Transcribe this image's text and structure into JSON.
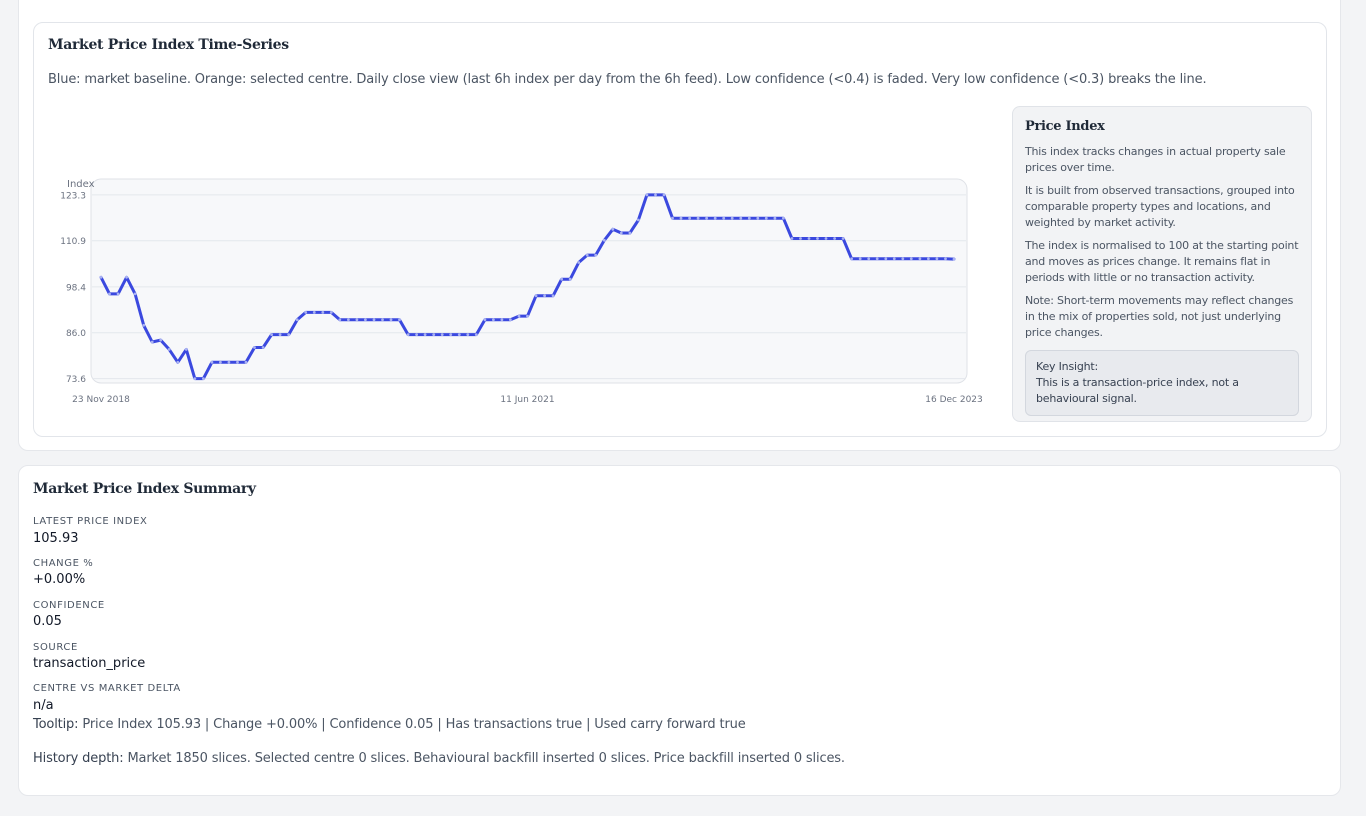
{
  "timeseries": {
    "title": "Market Price Index Time-Series",
    "description": "Blue: market baseline. Orange: selected centre. Daily close view (last 6h index per day from the 6h feed). Low confidence (<0.4) is faded. Very low confidence (<0.3) breaks the line."
  },
  "chart_data": {
    "type": "line",
    "ylabel": "Index",
    "yticks": [
      "123.3",
      "110.9",
      "98.4",
      "86.0",
      "73.6"
    ],
    "xticks": [
      "23 Nov 2018",
      "11 Jun 2021",
      "16 Dec 2023"
    ],
    "ylim": [
      72.4,
      127.6
    ],
    "xlim": [
      0,
      100
    ],
    "grid": true,
    "series": [
      {
        "color": "#3b49df",
        "x": [
          0,
          1,
          2,
          3,
          4,
          5,
          6,
          7,
          8,
          9,
          10,
          11,
          12,
          13,
          14,
          15,
          16,
          17,
          18,
          19,
          20,
          21,
          22,
          23,
          24,
          25,
          26,
          27,
          28,
          29,
          30,
          31,
          32,
          33,
          34,
          35,
          36,
          37,
          38,
          39,
          40,
          41,
          42,
          43,
          44,
          45,
          46,
          47,
          48,
          49,
          50,
          51,
          52,
          53,
          54,
          55,
          56,
          57,
          58,
          59,
          60,
          61,
          62,
          63,
          64,
          65,
          66,
          67,
          68,
          69,
          70,
          71,
          72,
          73,
          74,
          75,
          76,
          77,
          78,
          79,
          80,
          81,
          82,
          83,
          84,
          85,
          86,
          87,
          88,
          89,
          90,
          91,
          92,
          93,
          94,
          95,
          96,
          97,
          98,
          99,
          100
        ],
        "values": [
          101.0,
          96.5,
          96.5,
          101.0,
          96.5,
          88.0,
          83.5,
          84.0,
          81.5,
          78.0,
          81.5,
          73.6,
          73.6,
          78.0,
          78.0,
          78.0,
          78.0,
          78.0,
          82.0,
          82.0,
          85.5,
          85.5,
          85.5,
          89.5,
          91.5,
          91.5,
          91.5,
          91.5,
          89.5,
          89.5,
          89.5,
          89.5,
          89.5,
          89.5,
          89.5,
          89.5,
          85.5,
          85.5,
          85.5,
          85.5,
          85.5,
          85.5,
          85.5,
          85.5,
          85.5,
          89.5,
          89.5,
          89.5,
          89.5,
          90.5,
          90.5,
          96.0,
          96.0,
          96.0,
          100.5,
          100.5,
          105.0,
          107.0,
          107.0,
          111.0,
          114.0,
          113.0,
          113.0,
          116.5,
          123.3,
          123.3,
          123.3,
          117.0,
          117.0,
          117.0,
          117.0,
          117.0,
          117.0,
          117.0,
          117.0,
          117.0,
          117.0,
          117.0,
          117.0,
          117.0,
          117.0,
          111.5,
          111.5,
          111.5,
          111.5,
          111.5,
          111.5,
          111.5,
          106.0,
          106.0,
          106.0,
          106.0,
          106.0,
          106.0,
          106.0,
          106.0,
          106.0,
          106.0,
          106.0,
          106.0,
          105.93
        ]
      }
    ]
  },
  "sidebar": {
    "title": "Price Index",
    "p1": "This index tracks changes in actual property sale prices over time.",
    "p2": "It is built from observed transactions, grouped into comparable property types and locations, and weighted by market activity.",
    "p3": "The index is normalised to 100 at the starting point and moves as prices change. It remains flat in periods with little or no transaction activity.",
    "p4": "Note: Short-term movements may reflect changes in the mix of properties sold, not just underlying price changes.",
    "insight_title": "Key Insight:",
    "insight_text": "This is a transaction-price index, not a behavioural signal."
  },
  "summary": {
    "title": "Market Price Index Summary",
    "metrics": [
      {
        "label": "LATEST PRICE INDEX",
        "value": "105.93"
      },
      {
        "label": "CHANGE %",
        "value": "+0.00%"
      },
      {
        "label": "CONFIDENCE",
        "value": "0.05"
      },
      {
        "label": "SOURCE",
        "value": "transaction_price"
      },
      {
        "label": "CENTRE VS MARKET DELTA",
        "value": "n/a"
      }
    ],
    "tooltip_label": "Tooltip:",
    "tooltip_text": "Price Index 105.93 | Change +0.00% | Confidence 0.05 | Has transactions true | Used carry forward true",
    "history_label": "History depth:",
    "history_text": "Market 1850 slices. Selected centre 0 slices. Behavioural backfill inserted 0 slices. Price backfill inserted 0 slices."
  }
}
